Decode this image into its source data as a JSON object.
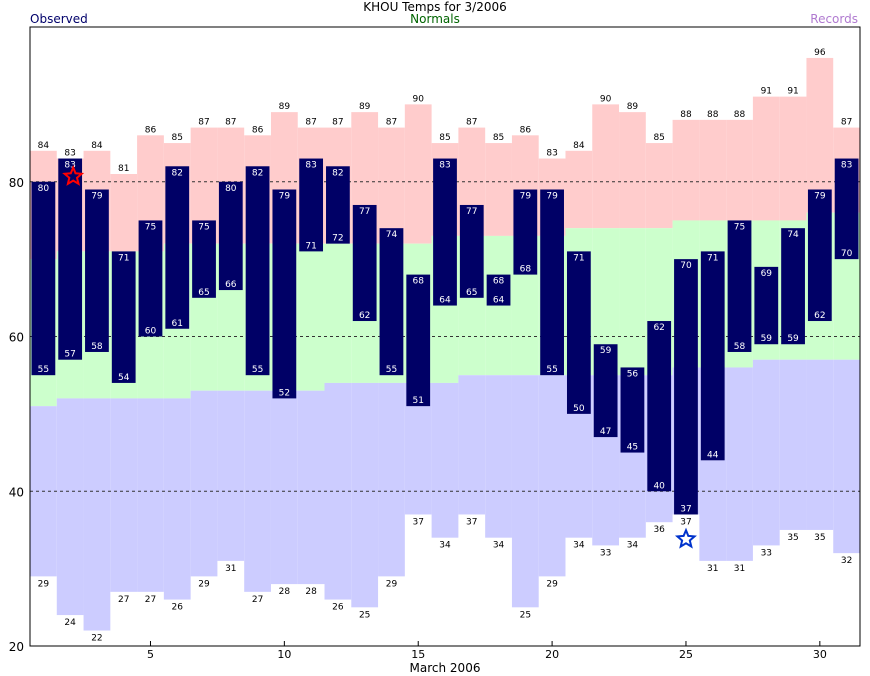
{
  "title": "KHOU Temps for 3/2006",
  "legend": {
    "observed": "Observed",
    "normals": "Normals",
    "records": "Records"
  },
  "colors": {
    "observed_text": "#00006a",
    "normals_text": "#006400",
    "records_text": "#b07ad0",
    "observed_bar": "#000066",
    "record_band": "#ffcccc",
    "normal_band": "#ccffcc",
    "low_band": "#ccccff",
    "record_high_star": "#ff0000",
    "record_low_star": "#0033cc"
  },
  "chart_data": {
    "type": "bar",
    "title": "KHOU Temps for 3/2006",
    "xlabel": "March 2006",
    "ylabel": "",
    "ylim": [
      20,
      100
    ],
    "xlim": [
      0.5,
      31.5
    ],
    "yticks": [
      20,
      40,
      60,
      80
    ],
    "xticks": [
      5,
      10,
      15,
      20,
      25,
      30
    ],
    "gridlines_y": [
      40,
      60,
      80
    ],
    "days": [
      1,
      2,
      3,
      4,
      5,
      6,
      7,
      8,
      9,
      10,
      11,
      12,
      13,
      14,
      15,
      16,
      17,
      18,
      19,
      20,
      21,
      22,
      23,
      24,
      25,
      26,
      27,
      28,
      29,
      30,
      31
    ],
    "series": [
      {
        "name": "Observed High",
        "values": [
          80,
          83,
          79,
          71,
          75,
          82,
          75,
          80,
          82,
          79,
          83,
          82,
          77,
          74,
          68,
          83,
          77,
          68,
          79,
          79,
          71,
          59,
          56,
          62,
          70,
          71,
          75,
          69,
          74,
          79,
          83
        ]
      },
      {
        "name": "Observed Low",
        "values": [
          55,
          57,
          58,
          54,
          60,
          61,
          65,
          66,
          55,
          52,
          71,
          72,
          62,
          55,
          51,
          64,
          65,
          64,
          68,
          55,
          50,
          47,
          45,
          40,
          37,
          44,
          58,
          59,
          59,
          62,
          70
        ]
      },
      {
        "name": "Record High",
        "values": [
          84,
          83,
          84,
          81,
          86,
          85,
          87,
          87,
          86,
          89,
          87,
          87,
          89,
          87,
          90,
          85,
          87,
          85,
          86,
          83,
          84,
          90,
          89,
          85,
          88,
          88,
          88,
          91,
          91,
          96,
          87
        ]
      },
      {
        "name": "Normal High",
        "values": [
          null,
          null,
          null,
          null,
          null,
          null,
          null,
          null,
          null,
          null,
          null,
          null,
          null,
          null,
          null,
          null,
          null,
          null,
          null,
          null,
          null,
          null,
          null,
          null,
          null,
          null,
          null,
          null,
          null,
          null,
          null
        ]
      },
      {
        "name": "Normal Low",
        "values": [
          null,
          null,
          null,
          null,
          null,
          null,
          null,
          null,
          null,
          null,
          null,
          null,
          null,
          null,
          null,
          null,
          null,
          null,
          null,
          null,
          null,
          null,
          null,
          null,
          null,
          null,
          null,
          null,
          null,
          null,
          null
        ]
      },
      {
        "name": "Record Low",
        "values": [
          29,
          24,
          22,
          27,
          27,
          26,
          29,
          31,
          27,
          28,
          28,
          26,
          25,
          29,
          37,
          34,
          37,
          34,
          25,
          29,
          34,
          33,
          34,
          36,
          37,
          31,
          31,
          33,
          35,
          35,
          32
        ]
      }
    ],
    "normal_high_band": [
      70,
      71,
      71,
      71,
      71,
      72,
      72,
      72,
      72,
      72,
      72,
      72,
      72,
      72,
      72,
      73,
      73,
      73,
      73,
      73,
      74,
      74,
      74,
      74,
      75,
      75,
      75,
      75,
      75,
      76,
      76
    ],
    "normal_low_band": [
      51,
      52,
      52,
      52,
      52,
      52,
      53,
      53,
      53,
      53,
      53,
      54,
      54,
      54,
      54,
      54,
      55,
      55,
      55,
      55,
      55,
      55,
      55,
      55,
      56,
      56,
      56,
      57,
      57,
      57,
      57
    ],
    "annotations": {
      "record_high_star_day": 2,
      "record_low_star_day": 25
    }
  }
}
